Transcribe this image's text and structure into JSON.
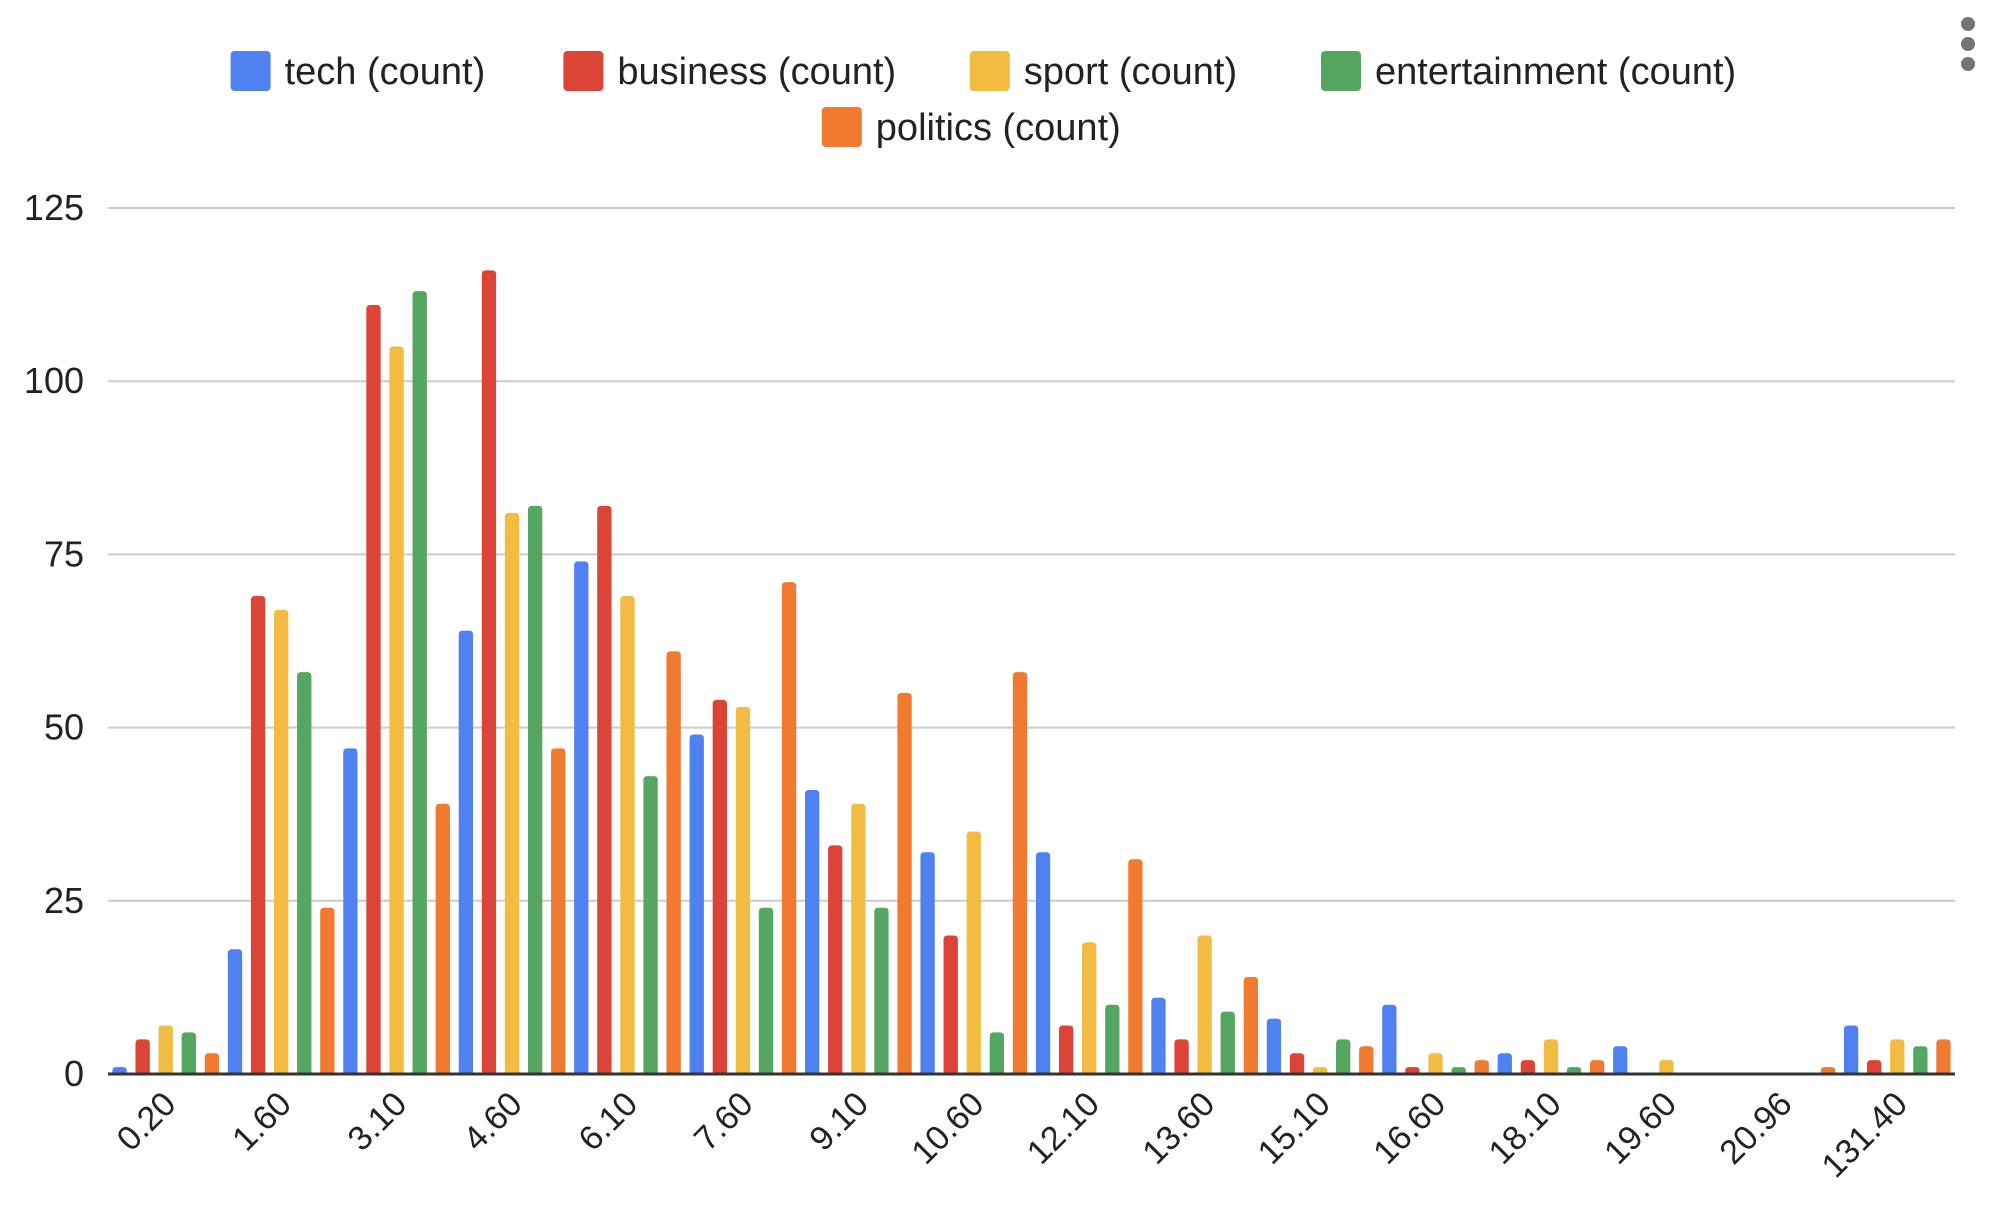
{
  "chart_data": {
    "type": "bar",
    "title": "",
    "xlabel": "",
    "ylabel": "",
    "ylim": [
      0,
      125
    ],
    "yticks": [
      "0",
      "25",
      "50",
      "75",
      "100",
      "125"
    ],
    "grid": true,
    "legend_position": "top",
    "categories": [
      "0.20",
      "1.60",
      "3.10",
      "4.60",
      "6.10",
      "7.60",
      "9.10",
      "10.60",
      "12.10",
      "13.60",
      "15.10",
      "16.60",
      "18.10",
      "19.60",
      "20.96",
      "131.40"
    ],
    "series": [
      {
        "name": "tech (count)",
        "color": "#4f81f0",
        "values": [
          1,
          18,
          47,
          64,
          74,
          49,
          41,
          32,
          32,
          11,
          8,
          10,
          3,
          4,
          0,
          7
        ]
      },
      {
        "name": "business (count)",
        "color": "#dc4437",
        "values": [
          5,
          69,
          111,
          116,
          82,
          54,
          33,
          20,
          7,
          5,
          3,
          1,
          2,
          0,
          0,
          2
        ]
      },
      {
        "name": "sport (count)",
        "color": "#f2bc42",
        "values": [
          7,
          67,
          105,
          81,
          69,
          53,
          39,
          35,
          19,
          20,
          1,
          3,
          5,
          2,
          0,
          5
        ]
      },
      {
        "name": "entertainment (count)",
        "color": "#55a660",
        "values": [
          6,
          58,
          113,
          82,
          43,
          24,
          24,
          6,
          10,
          9,
          5,
          1,
          1,
          0,
          0,
          4
        ]
      },
      {
        "name": "politics (count)",
        "color": "#ef7a30",
        "values": [
          3,
          24,
          39,
          47,
          61,
          71,
          55,
          58,
          31,
          14,
          4,
          2,
          2,
          0,
          1,
          5
        ]
      }
    ]
  }
}
